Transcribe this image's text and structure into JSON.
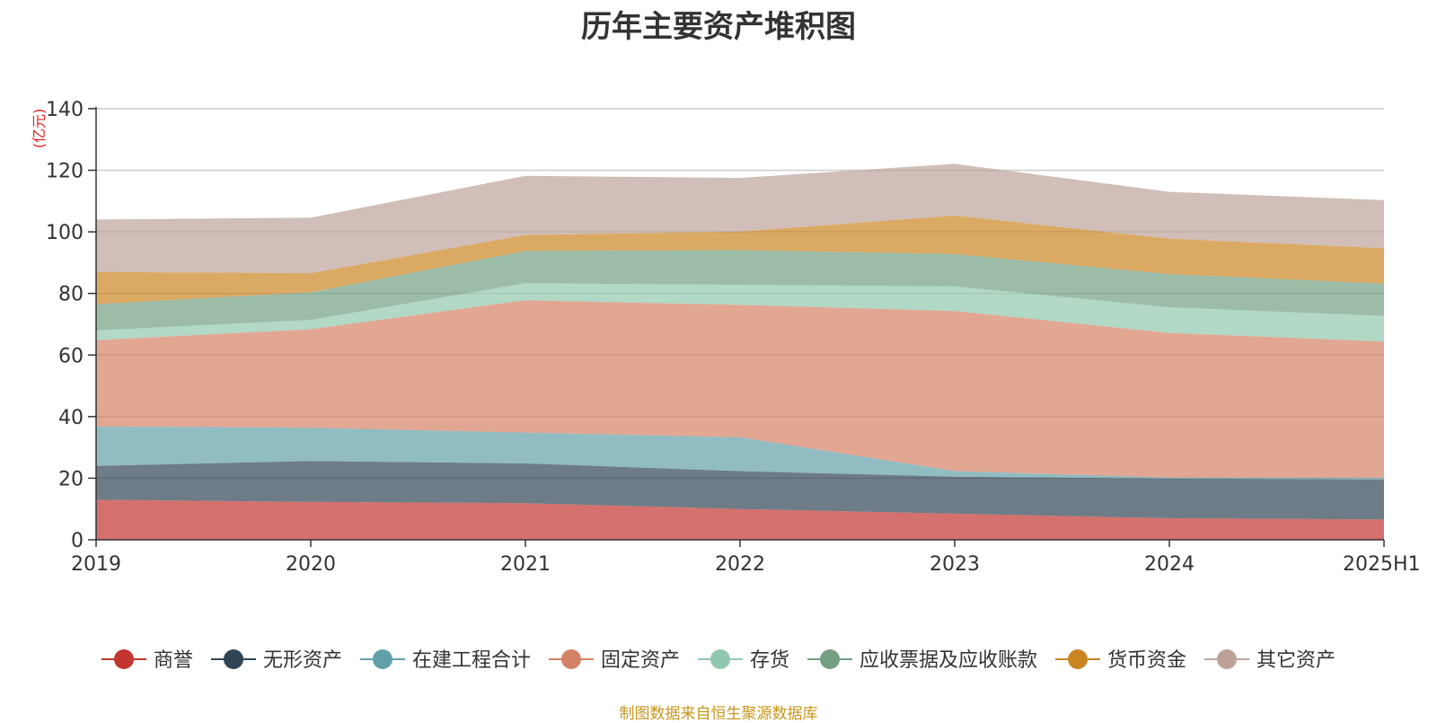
{
  "chart_data": {
    "type": "area",
    "title": "历年主要资产堆积图",
    "unit": "(亿元)",
    "x": [
      "2019",
      "2020",
      "2021",
      "2022",
      "2023",
      "2024",
      "2025H1"
    ],
    "ylim": [
      0,
      140
    ],
    "yticks": [
      "0",
      "20",
      "40",
      "60",
      "80",
      "100",
      "120",
      "140"
    ],
    "grid": true,
    "stacked": true,
    "legend_position": "bottom",
    "series": [
      {
        "name": "商誉",
        "color": "#c23531",
        "values": [
          13.0,
          12.3,
          11.9,
          10.0,
          8.5,
          7.0,
          6.6
        ]
      },
      {
        "name": "无形资产",
        "color": "#2f4554",
        "values": [
          11.0,
          13.3,
          12.9,
          12.3,
          12.0,
          12.9,
          13.0
        ]
      },
      {
        "name": "在建工程合计",
        "color": "#61a0a8",
        "values": [
          12.8,
          10.8,
          10.0,
          11.0,
          1.8,
          0.3,
          0.5
        ]
      },
      {
        "name": "固定资产",
        "color": "#d48265",
        "values": [
          28.0,
          32.0,
          43.0,
          43.0,
          52.0,
          47.0,
          44.3
        ]
      },
      {
        "name": "存货",
        "color": "#91c7ae",
        "values": [
          3.2,
          3.0,
          5.5,
          6.5,
          8.0,
          8.3,
          8.3
        ]
      },
      {
        "name": "应收票据及应收账款",
        "color": "#749f83",
        "values": [
          8.5,
          9.0,
          10.5,
          11.3,
          10.5,
          10.8,
          10.5
        ]
      },
      {
        "name": "货币资金",
        "color": "#ca8622",
        "values": [
          10.5,
          6.2,
          5.2,
          6.0,
          12.5,
          11.5,
          11.5
        ]
      },
      {
        "name": "其它资产",
        "color": "#bda29a",
        "values": [
          17.0,
          18.0,
          19.2,
          17.4,
          16.8,
          15.2,
          15.6
        ]
      }
    ]
  },
  "footer": {
    "source": "制图数据来自恒生聚源数据库"
  }
}
